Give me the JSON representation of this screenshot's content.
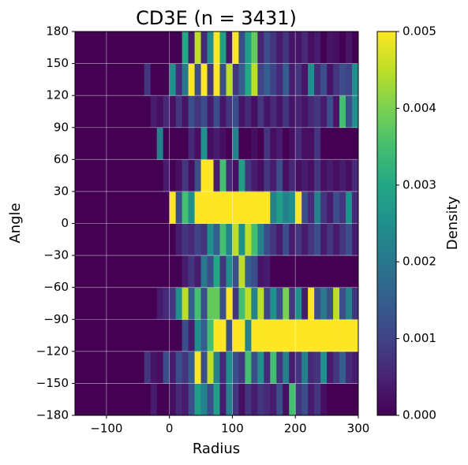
{
  "chart_data": {
    "type": "heatmap",
    "title": "CD3E (n = 3431)",
    "xlabel": "Radius",
    "ylabel": "Angle",
    "colorbar_label": "Density",
    "colormap": "viridis",
    "clim": [
      0,
      0.005
    ],
    "grid": true,
    "xlim": [
      -150,
      300
    ],
    "ylim": [
      -180,
      180
    ],
    "xticks": [
      {
        "value": -100,
        "label": "−100"
      },
      0,
      100,
      200,
      300
    ],
    "yticks": [
      {
        "value": -180,
        "label": "−180"
      },
      {
        "value": -150,
        "label": "−150"
      },
      {
        "value": -120,
        "label": "−120"
      },
      {
        "value": -90,
        "label": "−90"
      },
      {
        "value": -60,
        "label": "−60"
      },
      {
        "value": -30,
        "label": "−30"
      },
      0,
      30,
      60,
      90,
      120,
      150,
      180
    ],
    "cticks": [
      {
        "value": 0,
        "label": "0.000"
      },
      {
        "value": 0.001,
        "label": "0.001"
      },
      {
        "value": 0.002,
        "label": "0.002"
      },
      {
        "value": 0.003,
        "label": "0.003"
      },
      {
        "value": 0.004,
        "label": "0.004"
      },
      {
        "value": 0.005,
        "label": "0.005"
      }
    ],
    "xbins": [
      -150,
      -140,
      -130,
      -120,
      -110,
      -100,
      -90,
      -80,
      -70,
      -60,
      -50,
      -40,
      -30,
      -20,
      -10,
      0,
      10,
      20,
      30,
      40,
      50,
      60,
      70,
      80,
      90,
      100,
      110,
      120,
      130,
      140,
      150,
      160,
      170,
      180,
      190,
      200,
      210,
      220,
      230,
      240,
      250,
      260,
      270,
      280,
      290,
      300
    ],
    "ybins": [
      -180,
      -150,
      -120,
      -90,
      -60,
      -30,
      0,
      30,
      60,
      90,
      120,
      150,
      180
    ],
    "z": [
      [
        0,
        0,
        0,
        0,
        0,
        0,
        0,
        0,
        0,
        0,
        0,
        0,
        0.0004,
        0,
        0,
        0.0002,
        0.0006,
        0.0004,
        0.0012,
        0.0028,
        0.0022,
        0.0012,
        0.0028,
        0.0004,
        0.0022,
        0.0008,
        0.0002,
        0.0008,
        0.0004,
        0.0008,
        0.0006,
        0.0004,
        0.0012,
        0.0002,
        0.0035,
        0.0008,
        0.0012,
        0.0004,
        0.0008,
        0.0002,
        0,
        0,
        0,
        0,
        0
      ],
      [
        0,
        0,
        0,
        0,
        0,
        0,
        0,
        0,
        0,
        0,
        0,
        0.0008,
        0.0003,
        0.0002,
        0.0012,
        0.0004,
        0.0012,
        0.0008,
        0.0015,
        0.005,
        0.0012,
        0.0045,
        0.0022,
        0.0006,
        0.0025,
        0.0012,
        0.0008,
        0.0035,
        0.0012,
        0.0025,
        0.0006,
        0.0035,
        0.0008,
        0.0022,
        0.0004,
        0.0008,
        0.0022,
        0.0006,
        0.0008,
        0.0025,
        0.0004,
        0.0008,
        0.0015,
        0.0006,
        0.0004
      ],
      [
        0,
        0,
        0,
        0,
        0,
        0,
        0,
        0,
        0,
        0,
        0,
        0,
        0,
        0,
        0,
        0,
        0,
        0.0012,
        0.0004,
        0.0025,
        0.0015,
        0.0035,
        0.005,
        0.005,
        0.0012,
        0.005,
        0.005,
        0.0022,
        0.005,
        0.005,
        0.005,
        0.005,
        0.005,
        0.005,
        0.005,
        0.005,
        0.005,
        0.005,
        0.005,
        0.005,
        0.005,
        0.005,
        0.005,
        0.005,
        0.005
      ],
      [
        0,
        0,
        0,
        0,
        0,
        0,
        0,
        0,
        0,
        0,
        0,
        0,
        0,
        0.0004,
        0.0006,
        0.0008,
        0.0025,
        0.0045,
        0.0015,
        0.0035,
        0.0012,
        0.0038,
        0.0038,
        0.0012,
        0.005,
        0.0008,
        0.0035,
        0.0045,
        0.0022,
        0.0045,
        0.001,
        0.0025,
        0.0012,
        0.004,
        0.0008,
        0.0025,
        0.0004,
        0.005,
        0.0012,
        0.002,
        0.0012,
        0.0045,
        0.0012,
        0.0022,
        0.0008
      ],
      [
        0,
        0,
        0,
        0,
        0,
        0,
        0,
        0,
        0,
        0,
        0,
        0,
        0,
        0,
        0,
        0,
        0,
        0.0004,
        0.0008,
        0.0004,
        0.002,
        0.0012,
        0.003,
        0.0008,
        0.0025,
        0.0012,
        0.0045,
        0.0015,
        0.0012,
        0.0003,
        0.0004,
        0,
        0,
        0,
        0,
        0,
        0,
        0,
        0,
        0,
        0,
        0,
        0,
        0,
        0
      ],
      [
        0,
        0,
        0,
        0,
        0,
        0,
        0,
        0,
        0,
        0,
        0,
        0,
        0,
        0,
        0,
        0,
        0.0004,
        0.0008,
        0.0006,
        0.001,
        0.0008,
        0.0025,
        0.0015,
        0.0035,
        0.0022,
        0.0045,
        0.0025,
        0.0045,
        0.0035,
        0.0022,
        0.0012,
        0.0008,
        0.0004,
        0.0012,
        0.0004,
        0.0008,
        0.0004,
        0.0008,
        0.0012,
        0.0004,
        0.0008,
        0.0004,
        0.0008,
        0.0012,
        0.0004
      ],
      [
        0,
        0,
        0,
        0,
        0,
        0,
        0,
        0,
        0,
        0,
        0,
        0,
        0,
        0,
        0,
        0.005,
        0.0012,
        0.0035,
        0.0025,
        0.005,
        0.005,
        0.005,
        0.005,
        0.005,
        0.005,
        0.005,
        0.005,
        0.005,
        0.005,
        0.005,
        0.005,
        0.0022,
        0.0028,
        0.0022,
        0.0025,
        0.005,
        0.0012,
        0.0006,
        0.0022,
        0.0008,
        0.0004,
        0.0012,
        0.0008,
        0.0025,
        0.0006
      ],
      [
        0,
        0,
        0,
        0,
        0,
        0,
        0,
        0,
        0,
        0,
        0,
        0,
        0,
        0,
        0.0004,
        0,
        0.0002,
        0.0008,
        0.0002,
        0.0012,
        0.005,
        0.005,
        0.0004,
        0.0035,
        0.0006,
        0.0002,
        0.0028,
        0.0008,
        0.0004,
        0.0002,
        0.0008,
        0.0004,
        0.0012,
        0.0002,
        0.0006,
        0.0002,
        0.0004,
        0.0002,
        0.0008,
        0.0002,
        0.0004,
        0.0002,
        0.0004,
        0.0002,
        0.0006
      ],
      [
        0,
        0,
        0,
        0,
        0,
        0,
        0,
        0,
        0,
        0,
        0,
        0,
        0,
        0.0022,
        0,
        0,
        0,
        0,
        0.0006,
        0.0002,
        0.0025,
        0.0002,
        0.0004,
        0.0002,
        0,
        0.0022,
        0,
        0,
        0.0002,
        0,
        0.0008,
        0.0002,
        0.0004,
        0,
        0.0002,
        0.0006,
        0.0002,
        0.0002,
        0.0008,
        0,
        0,
        0,
        0,
        0,
        0
      ],
      [
        0,
        0,
        0,
        0,
        0,
        0,
        0,
        0,
        0,
        0,
        0,
        0,
        0.0004,
        0.0002,
        0.0006,
        0.0002,
        0.0008,
        0.0003,
        0.0012,
        0.0008,
        0.0012,
        0.0004,
        0.0012,
        0.0003,
        0.0008,
        0.0012,
        0.0003,
        0.0006,
        0.0002,
        0.0008,
        0.0003,
        0.0006,
        0.0003,
        0.0008,
        0.0003,
        0.0005,
        0.0003,
        0.0006,
        0.0008,
        0.0004,
        0.0012,
        0.0003,
        0.0035,
        0.0012,
        0.0025
      ],
      [
        0,
        0,
        0,
        0,
        0,
        0,
        0,
        0,
        0,
        0,
        0,
        0.0008,
        0,
        0,
        0,
        0.0025,
        0.0006,
        0.002,
        0.005,
        0.0012,
        0.005,
        0.0008,
        0.005,
        0.0012,
        0.0045,
        0.0008,
        0.0015,
        0.003,
        0.0045,
        0.001,
        0.0015,
        0.001,
        0.0006,
        0.0015,
        0.0004,
        0.0008,
        0.0003,
        0.0025,
        0.0006,
        0.0012,
        0.0003,
        0.0008,
        0.0012,
        0.001,
        0.0025
      ],
      [
        0,
        0,
        0,
        0,
        0,
        0,
        0,
        0,
        0,
        0,
        0,
        0,
        0,
        0,
        0,
        0,
        0,
        0.003,
        0.0004,
        0.0045,
        0.0006,
        0.0025,
        0.005,
        0.0028,
        0.0003,
        0.005,
        0.0012,
        0.0028,
        0.0038,
        0.0005,
        0.0012,
        0.0008,
        0.0004,
        0.0008,
        0.0003,
        0.0003,
        0.0006,
        0.0002,
        0.0004,
        0,
        0.0003,
        0.0002,
        0,
        0.0003,
        0
      ]
    ]
  }
}
